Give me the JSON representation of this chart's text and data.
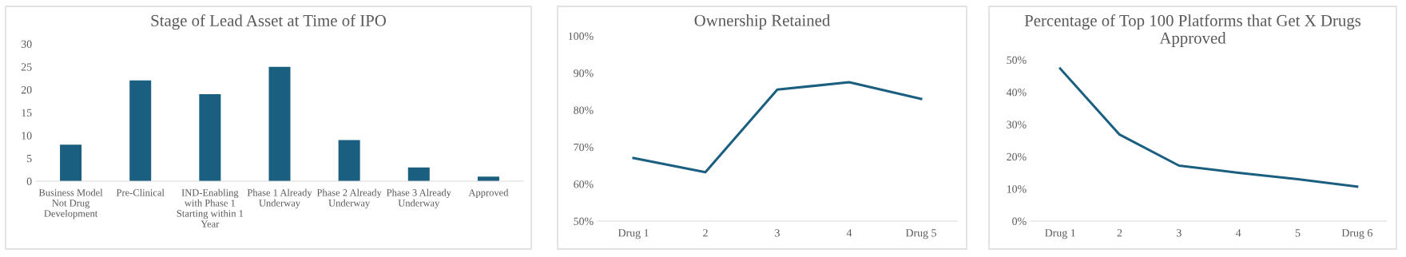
{
  "chart_data": [
    {
      "type": "bar",
      "title": "Stage of Lead Asset at Time of IPO",
      "categories": [
        "Business Model\nNot Drug\nDevelopment",
        "Pre-Clinical",
        "IND-Enabling\nwith Phase 1\nStarting within 1\nYear",
        "Phase 1 Already\nUnderway",
        "Phase 2 Already\nUnderway",
        "Phase 3 Already\nUnderway",
        "Approved"
      ],
      "values": [
        8,
        22,
        19,
        25,
        9,
        3,
        1
      ],
      "color": "#1b5f80",
      "ylim": [
        0,
        30
      ],
      "yticks": [
        0,
        5,
        10,
        15,
        20,
        25,
        30
      ],
      "grid": false,
      "legend": false
    },
    {
      "type": "line",
      "title": "Ownership Retained",
      "categories": [
        "Drug 1",
        "2",
        "3",
        "4",
        "Drug 5"
      ],
      "values": [
        67,
        63.2,
        85.5,
        87.5,
        83
      ],
      "color": "#1b5f80",
      "marker": "none",
      "line_style": "solid",
      "ylim": [
        50,
        100
      ],
      "yticks": [
        {
          "value": 50,
          "label": "50%"
        },
        {
          "value": 60,
          "label": "60%"
        },
        {
          "value": 70,
          "label": "70%"
        },
        {
          "value": 80,
          "label": "80%"
        },
        {
          "value": 90,
          "label": "90%"
        },
        {
          "value": 100,
          "label": "100%"
        }
      ],
      "grid": false,
      "legend": false
    },
    {
      "type": "line",
      "title": "Percentage of Top 100 Platforms that Get X Drugs Approved",
      "categories": [
        "Drug 1",
        "2",
        "3",
        "4",
        "5",
        "Drug 6"
      ],
      "values": [
        47.3,
        26.8,
        17.2,
        15,
        13,
        10.7
      ],
      "color": "#1b5f80",
      "marker": "none",
      "line_style": "solid",
      "ylim": [
        0,
        50
      ],
      "yticks": [
        {
          "value": 0,
          "label": "0%"
        },
        {
          "value": 10,
          "label": "10%"
        },
        {
          "value": 20,
          "label": "20%"
        },
        {
          "value": 30,
          "label": "30%"
        },
        {
          "value": 40,
          "label": "40%"
        },
        {
          "value": 50,
          "label": "50%"
        }
      ],
      "grid": false,
      "legend": false
    }
  ]
}
